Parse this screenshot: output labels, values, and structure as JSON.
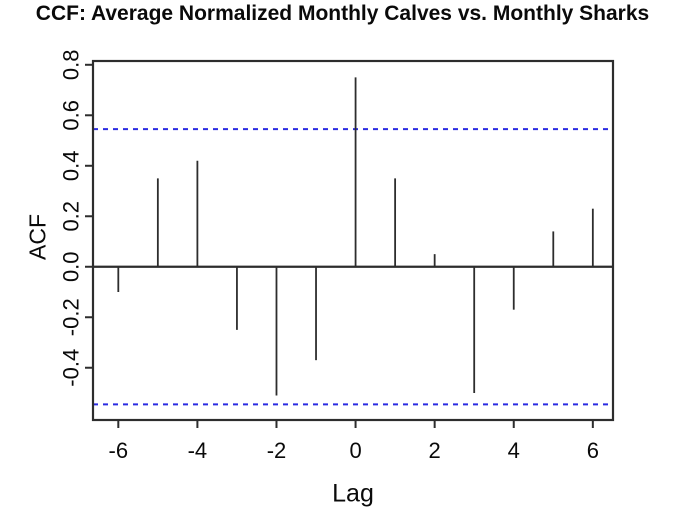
{
  "title": "CCF: Average Normalized Monthly Calves vs. Monthly Sharks",
  "chart_data": {
    "type": "bar",
    "subtype": "ccf-stem-plot",
    "title": "CCF: Average Normalized Monthly Calves vs. Monthly Sharks",
    "xlabel": "Lag",
    "ylabel": "ACF",
    "x": [
      -6,
      -5,
      -4,
      -3,
      -2,
      -1,
      0,
      1,
      2,
      3,
      4,
      5,
      6
    ],
    "values": [
      -0.1,
      0.35,
      0.42,
      -0.25,
      -0.51,
      -0.37,
      0.75,
      0.35,
      0.05,
      -0.5,
      -0.17,
      0.14,
      0.23
    ],
    "xlim": [
      -6.64,
      6.51
    ],
    "ylim": [
      -0.607,
      0.815
    ],
    "xticks": {
      "values": [
        -6,
        -4,
        -2,
        0,
        2,
        4,
        6
      ],
      "labels": [
        "-6",
        "-4",
        "-2",
        "0",
        "2",
        "4",
        "6"
      ]
    },
    "yticks": {
      "values": [
        0.8,
        0.6,
        0.4,
        0.2,
        0.0,
        -0.2,
        -0.4
      ],
      "labels": [
        "0.8",
        "0.6",
        "0.4",
        "0.2",
        "0.0",
        "-0.2",
        "-0.4"
      ]
    },
    "confidence_bands": {
      "upper": 0.545,
      "lower": -0.545,
      "style": "dashed"
    },
    "grid": false,
    "legend": null,
    "colors": {
      "stem": "#2d2d2d",
      "axis": "#2d2d2d",
      "zero_line": "#2d2d2d",
      "confidence_line": "#2b2be1",
      "text": "#0a0a0a",
      "background": "#ffffff"
    }
  }
}
